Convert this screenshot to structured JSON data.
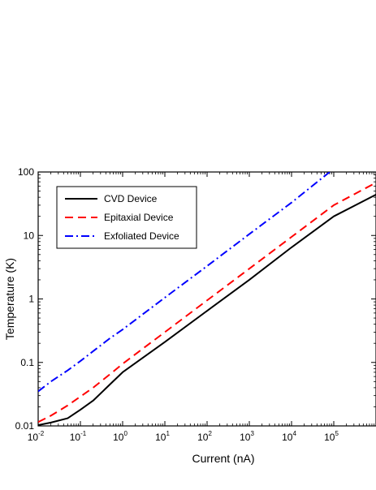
{
  "chart_data": {
    "type": "line",
    "title": "",
    "xlabel": "Current (nA)",
    "ylabel": "Temperature (K)",
    "xscale": "log",
    "yscale": "log",
    "xlim": [
      0.01,
      1000000
    ],
    "ylim": [
      0.01,
      100
    ],
    "x_ticks": [
      {
        "base": "10",
        "exp": "-2"
      },
      {
        "base": "10",
        "exp": "-1"
      },
      {
        "base": "10",
        "exp": "0"
      },
      {
        "base": "10",
        "exp": "1"
      },
      {
        "base": "10",
        "exp": "2"
      },
      {
        "base": "10",
        "exp": "3"
      },
      {
        "base": "10",
        "exp": "4"
      },
      {
        "base": "10",
        "exp": "5"
      }
    ],
    "y_ticks": [
      "0.01",
      "0.1",
      "1",
      "10",
      "100"
    ],
    "grid": false,
    "legend_position": "top-left",
    "series": [
      {
        "name": "CVD Device",
        "color": "#000000",
        "dash": "solid",
        "x": [
          0.01,
          0.02,
          0.05,
          0.1,
          0.2,
          0.5,
          1,
          10,
          100,
          1000,
          10000,
          100000,
          1000000
        ],
        "y": [
          0.0103,
          0.0113,
          0.0132,
          0.018,
          0.025,
          0.045,
          0.07,
          0.21,
          0.65,
          2.0,
          6.5,
          20,
          44
        ]
      },
      {
        "name": "Epitaxial Device",
        "color": "#ff0000",
        "dash": "dashed",
        "x": [
          0.01,
          0.02,
          0.05,
          0.1,
          0.2,
          0.5,
          1,
          10,
          100,
          1000,
          10000,
          100000,
          1000000
        ],
        "y": [
          0.0115,
          0.0145,
          0.021,
          0.029,
          0.04,
          0.065,
          0.095,
          0.3,
          0.95,
          3.0,
          9.5,
          30,
          68
        ]
      },
      {
        "name": "Exfoliated Device",
        "color": "#0000ff",
        "dash": "dashdot",
        "x": [
          0.01,
          0.02,
          0.05,
          0.1,
          0.2,
          0.5,
          1,
          10,
          100,
          1000,
          10000,
          80000
        ],
        "y": [
          0.035,
          0.05,
          0.075,
          0.105,
          0.15,
          0.24,
          0.33,
          1.05,
          3.3,
          10.5,
          33,
          100
        ]
      }
    ]
  }
}
